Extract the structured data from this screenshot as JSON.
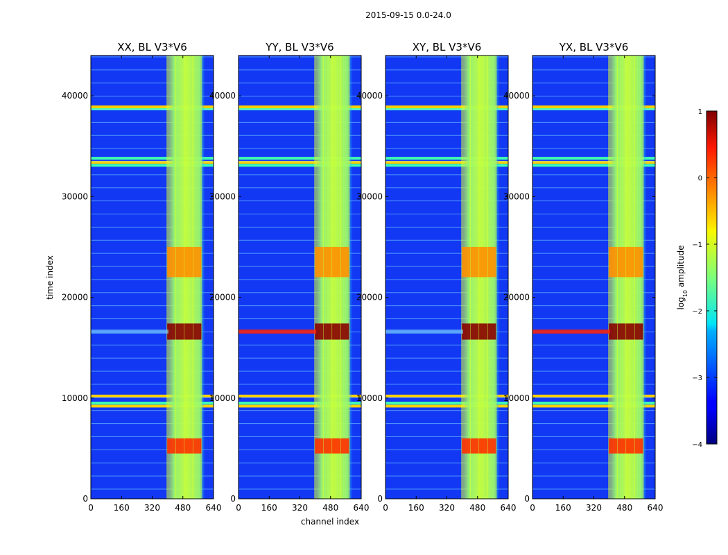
{
  "figure": {
    "title": "2015-09-15 0.0-24.0"
  },
  "chart_data": {
    "type": "heatmap",
    "title": "2015-09-15 0.0-24.0",
    "xlabel": "channel index",
    "ylabel": "time index",
    "xlim": [
      0,
      640
    ],
    "ylim": [
      0,
      44000
    ],
    "xticks": [
      0,
      160,
      320,
      480,
      640
    ],
    "yticks": [
      0,
      10000,
      20000,
      30000,
      40000
    ],
    "xtick_labels": [
      "0",
      "160",
      "320",
      "480",
      "640"
    ],
    "ytick_labels": [
      "0",
      "10000",
      "20000",
      "30000",
      "40000"
    ],
    "panels": [
      {
        "title": "XX, BL V3*V6",
        "polarization": "XX"
      },
      {
        "title": "YY, BL V3*V6",
        "polarization": "YY"
      },
      {
        "title": "XY, BL V3*V6",
        "polarization": "XY"
      },
      {
        "title": "YX, BL V3*V6",
        "polarization": "YX"
      }
    ],
    "background_log_amplitude": -3.0,
    "band_channels": [
      [
        405,
        595
      ]
    ],
    "band_stripe_channels": [
      420,
      465,
      510,
      555
    ],
    "bright_time_ranges": [
      {
        "from": 15800,
        "to": 17400,
        "log_amplitude": 0.8
      },
      {
        "from": 4500,
        "to": 6000,
        "log_amplitude": 0.3
      },
      {
        "from": 22000,
        "to": 25000,
        "log_amplitude": -0.5
      }
    ],
    "rfi_time_rows": [
      38700,
      38900,
      33100,
      33400,
      33800,
      9200,
      9500,
      10200
    ],
    "colorbar": {
      "label": "log10 amplitude",
      "label_main": "log",
      "label_sub": "10",
      "label_tail": " amplitude",
      "range": [
        -4,
        1
      ],
      "ticks": [
        "1",
        "0",
        "−1",
        "−2",
        "−3",
        "−4"
      ],
      "tick_values": [
        1,
        0,
        -1,
        -2,
        -3,
        -4
      ],
      "colormap": "jet"
    }
  }
}
